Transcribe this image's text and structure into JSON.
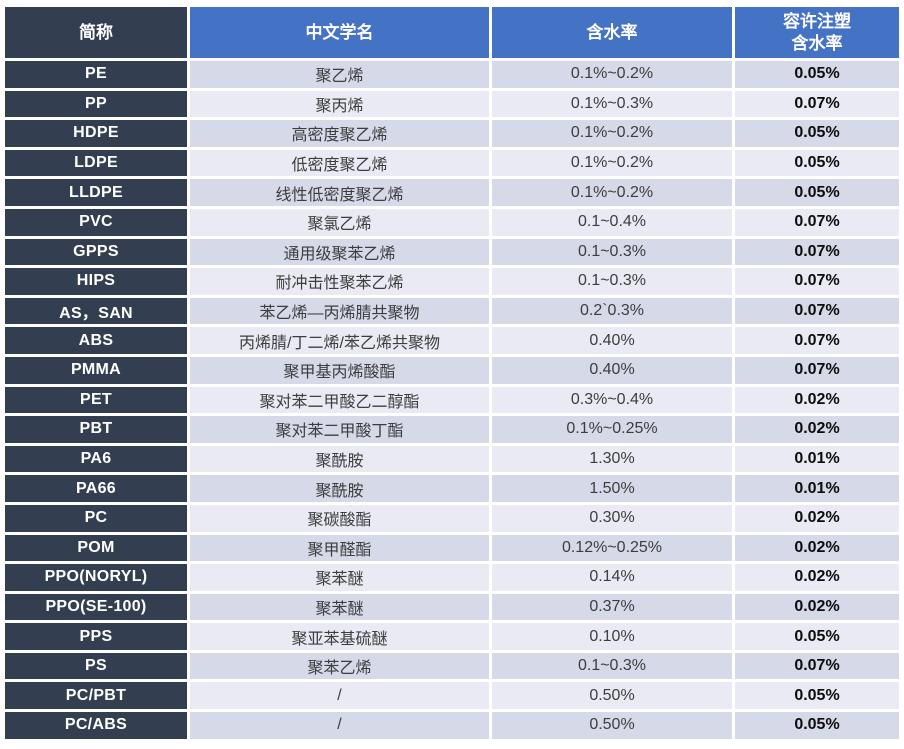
{
  "colors": {
    "header_blue": "#4472C4",
    "dark_slate": "#333F50",
    "row_light_a": "#D5D9E8",
    "row_light_b": "#E9EAF3",
    "gridline": "#FFFFFF",
    "header_text": "#FFFFFF",
    "body_text": "#3D3D3D",
    "allowed_text": "#0D0D0D"
  },
  "table": {
    "headers": [
      "简称",
      "中文学名",
      "含水率",
      "容许注塑\n含水率"
    ],
    "rows": [
      {
        "abbr": "PE",
        "name": "聚乙烯",
        "moisture": "0.1%~0.2%",
        "allowed": "0.05%"
      },
      {
        "abbr": "PP",
        "name": "聚丙烯",
        "moisture": "0.1%~0.3%",
        "allowed": "0.07%"
      },
      {
        "abbr": "HDPE",
        "name": "高密度聚乙烯",
        "moisture": "0.1%~0.2%",
        "allowed": "0.05%"
      },
      {
        "abbr": "LDPE",
        "name": "低密度聚乙烯",
        "moisture": "0.1%~0.2%",
        "allowed": "0.05%"
      },
      {
        "abbr": "LLDPE",
        "name": "线性低密度聚乙烯",
        "moisture": "0.1%~0.2%",
        "allowed": "0.05%"
      },
      {
        "abbr": "PVC",
        "name": "聚氯乙烯",
        "moisture": "0.1~0.4%",
        "allowed": "0.07%"
      },
      {
        "abbr": "GPPS",
        "name": "通用级聚苯乙烯",
        "moisture": "0.1~0.3%",
        "allowed": "0.07%"
      },
      {
        "abbr": "HIPS",
        "name": "耐冲击性聚苯乙烯",
        "moisture": "0.1~0.3%",
        "allowed": "0.07%"
      },
      {
        "abbr": "AS，SAN",
        "name": "苯乙烯—丙烯腈共聚物",
        "moisture": "0.2`0.3%",
        "allowed": "0.07%"
      },
      {
        "abbr": "ABS",
        "name": "丙烯腈/丁二烯/苯乙烯共聚物",
        "moisture": "0.40%",
        "allowed": "0.07%"
      },
      {
        "abbr": "PMMA",
        "name": "聚甲基丙烯酸酯",
        "moisture": "0.40%",
        "allowed": "0.07%"
      },
      {
        "abbr": "PET",
        "name": "聚对苯二甲酸乙二醇酯",
        "moisture": "0.3%~0.4%",
        "allowed": "0.02%"
      },
      {
        "abbr": "PBT",
        "name": "聚对苯二甲酸丁酯",
        "moisture": "0.1%~0.25%",
        "allowed": "0.02%"
      },
      {
        "abbr": "PA6",
        "name": "聚酰胺",
        "moisture": "1.30%",
        "allowed": "0.01%"
      },
      {
        "abbr": "PA66",
        "name": "聚酰胺",
        "moisture": "1.50%",
        "allowed": "0.01%"
      },
      {
        "abbr": "PC",
        "name": "聚碳酸酯",
        "moisture": "0.30%",
        "allowed": "0.02%"
      },
      {
        "abbr": "POM",
        "name": "聚甲醛酯",
        "moisture": "0.12%~0.25%",
        "allowed": "0.02%"
      },
      {
        "abbr": "PPO(NORYL)",
        "name": "聚苯醚",
        "moisture": "0.14%",
        "allowed": "0.02%"
      },
      {
        "abbr": "PPO(SE-100)",
        "name": "聚苯醚",
        "moisture": "0.37%",
        "allowed": "0.02%"
      },
      {
        "abbr": "PPS",
        "name": "聚亚苯基硫醚",
        "moisture": "0.10%",
        "allowed": "0.05%"
      },
      {
        "abbr": "PS",
        "name": "聚苯乙烯",
        "moisture": "0.1~0.3%",
        "allowed": "0.07%"
      },
      {
        "abbr": "PC/PBT",
        "name": "/",
        "moisture": "0.50%",
        "allowed": "0.05%"
      },
      {
        "abbr": "PC/ABS",
        "name": "/",
        "moisture": "0.50%",
        "allowed": "0.05%"
      }
    ]
  }
}
